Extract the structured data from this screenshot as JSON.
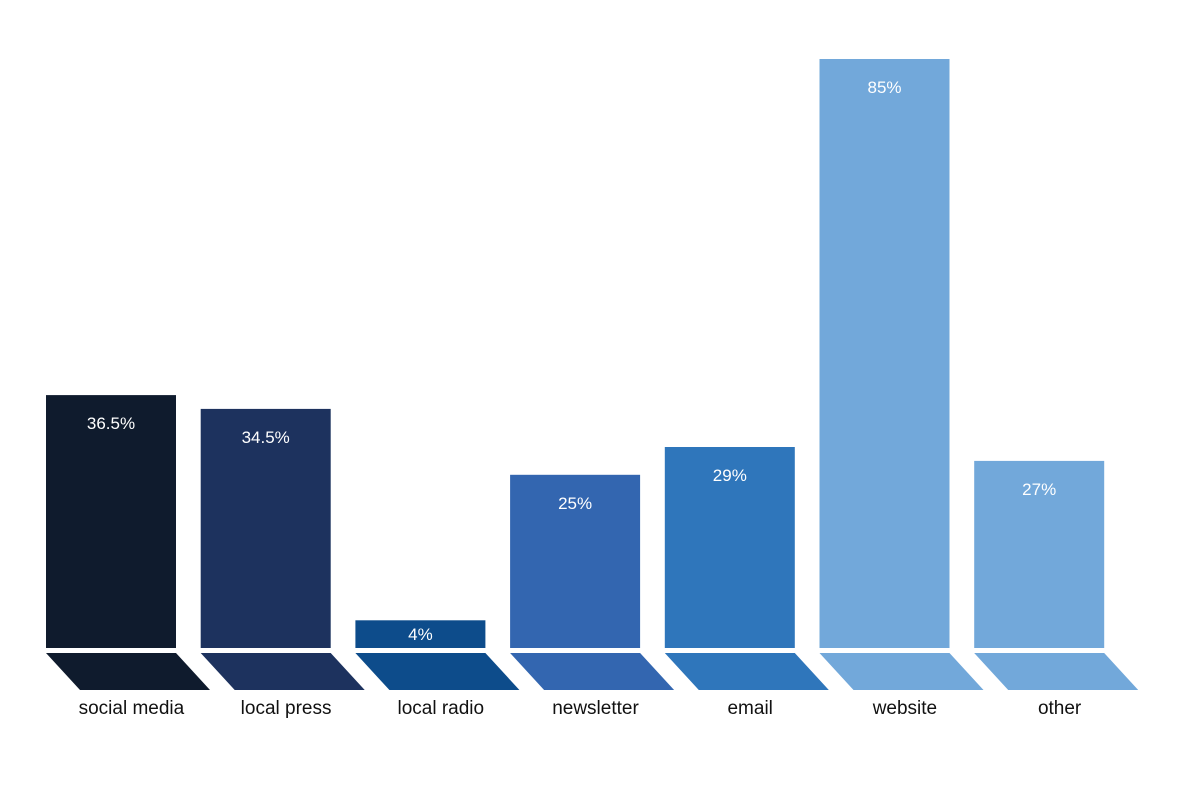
{
  "chart_data": {
    "type": "bar",
    "categories": [
      "social media",
      "local press",
      "local radio",
      "newsletter",
      "email",
      "website",
      "other"
    ],
    "values": [
      36.5,
      34.5,
      4,
      25,
      29,
      85,
      27
    ],
    "value_labels": [
      "36.5%",
      "34.5%",
      "4%",
      "25%",
      "29%",
      "85%",
      "27%"
    ],
    "colors": [
      "#0f1b2d",
      "#1d325e",
      "#0d4c8b",
      "#3366b0",
      "#2f76bb",
      "#72a8da",
      "#72a8da"
    ],
    "ylim": [
      0,
      85
    ],
    "grid": false,
    "legend": "none"
  }
}
